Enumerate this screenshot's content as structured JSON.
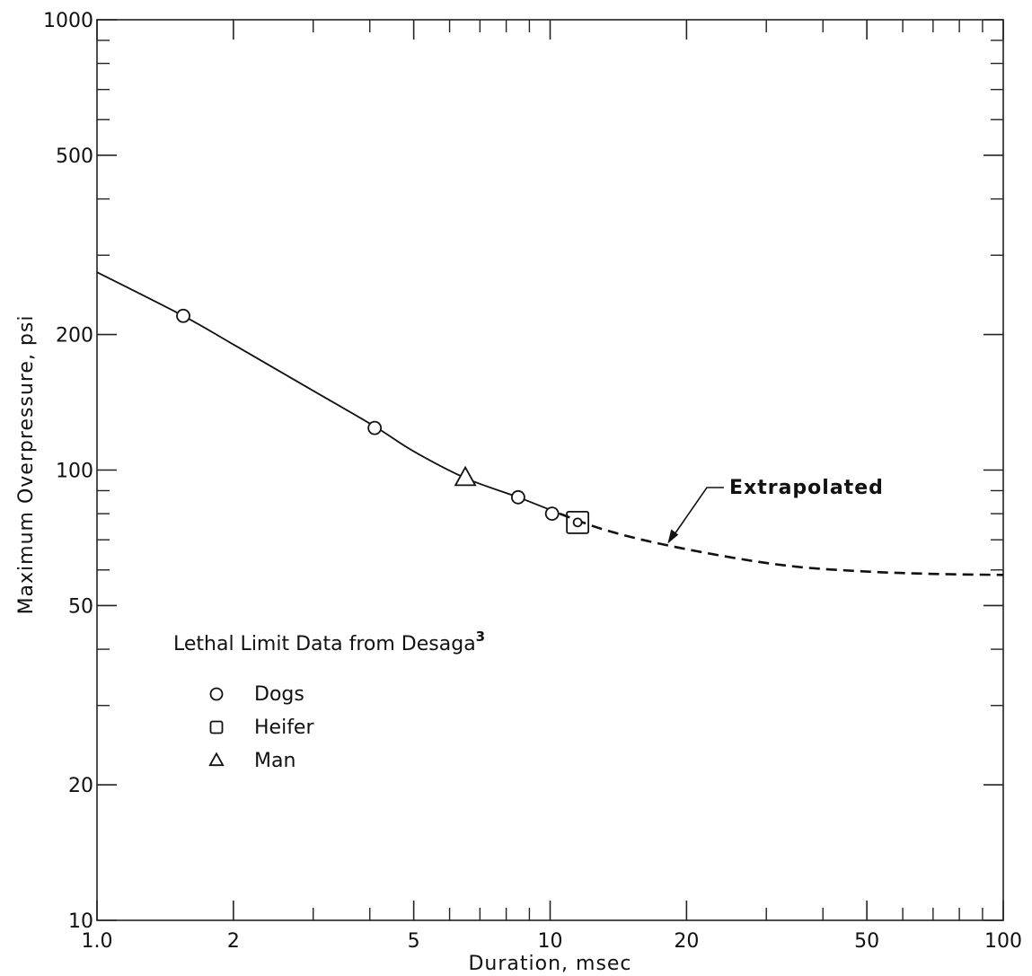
{
  "chart_data": {
    "type": "line",
    "xscale": "log",
    "yscale": "log",
    "xlim": [
      1.0,
      100
    ],
    "ylim": [
      10,
      1000
    ],
    "xlabel": "Duration, msec",
    "ylabel": "Maximum Overpressure, psi",
    "x_ticks": [
      {
        "value": 1.0,
        "label": "1.0"
      },
      {
        "value": 2,
        "label": "2"
      },
      {
        "value": 5,
        "label": "5"
      },
      {
        "value": 10,
        "label": "10"
      },
      {
        "value": 20,
        "label": "20"
      },
      {
        "value": 50,
        "label": "50"
      },
      {
        "value": 100,
        "label": "100"
      }
    ],
    "y_ticks": [
      {
        "value": 10,
        "label": "10"
      },
      {
        "value": 20,
        "label": "20"
      },
      {
        "value": 50,
        "label": "50"
      },
      {
        "value": 100,
        "label": "100"
      },
      {
        "value": 200,
        "label": "200"
      },
      {
        "value": 500,
        "label": "500"
      },
      {
        "value": 1000,
        "label": "1000"
      }
    ],
    "x_minor_ticks": [
      3,
      4,
      6,
      7,
      8,
      9,
      30,
      40,
      60,
      70,
      80,
      90
    ],
    "y_minor_ticks": [
      30,
      40,
      60,
      70,
      80,
      90,
      300,
      400,
      600,
      700,
      800,
      900
    ],
    "grid": false,
    "series": [
      {
        "style": "solid",
        "x": [
          1.0,
          1.55,
          2.0,
          3.0,
          4.1,
          5.0,
          6.5,
          8.5,
          10.5
        ],
        "y": [
          275,
          220,
          190,
          150,
          125,
          110,
          96,
          87,
          80
        ]
      },
      {
        "name": "Extrapolated",
        "style": "dashed",
        "x": [
          10.5,
          13,
          17,
          25,
          35,
          50,
          70,
          100
        ],
        "y": [
          80,
          74,
          69,
          64,
          61,
          59.5,
          58.8,
          58.5
        ]
      }
    ],
    "points": [
      {
        "group": "Dogs",
        "marker": "circle",
        "x": 1.55,
        "y": 220
      },
      {
        "group": "Dogs",
        "marker": "circle",
        "x": 4.1,
        "y": 124
      },
      {
        "group": "Dogs",
        "marker": "circle",
        "x": 8.5,
        "y": 87
      },
      {
        "group": "Dogs",
        "marker": "circle",
        "x": 10.1,
        "y": 80
      },
      {
        "group": "Dogs",
        "marker": "circle",
        "x": 11.5,
        "y": 76.5
      },
      {
        "group": "Heifer",
        "marker": "square",
        "x": 11.5,
        "y": 76.5
      },
      {
        "group": "Man",
        "marker": "triangle",
        "x": 6.5,
        "y": 96
      }
    ],
    "legend": {
      "title": "Lethal Limit Data from Desaga",
      "title_superscript": "3",
      "placement": "lower-left",
      "entries": [
        {
          "marker": "circle",
          "label": "Dogs"
        },
        {
          "marker": "square",
          "label": "Heifer"
        },
        {
          "marker": "triangle",
          "label": "Man"
        }
      ]
    },
    "annotations": [
      {
        "text": "Extrapolated",
        "x": 18,
        "y": 68
      }
    ]
  }
}
